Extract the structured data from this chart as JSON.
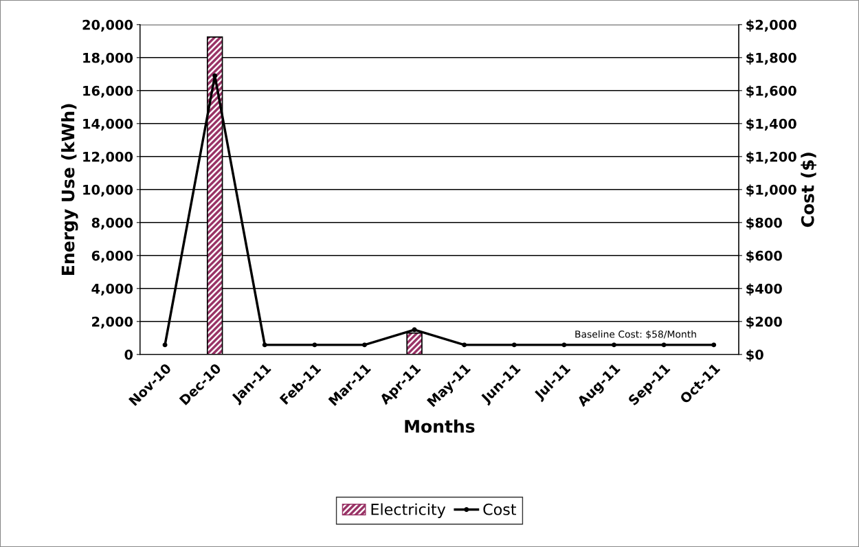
{
  "chart_data": {
    "type": "bar",
    "xlabel": "Months",
    "ylabel": "Energy Use (kWh)",
    "y2label": "Cost ($)",
    "categories": [
      "Nov-10",
      "Dec-10",
      "Jan-11",
      "Feb-11",
      "Mar-11",
      "Apr-11",
      "May-11",
      "Jun-11",
      "Jul-11",
      "Aug-11",
      "Sep-11",
      "Oct-11"
    ],
    "series": [
      {
        "name": "Electricity",
        "color": "#993366",
        "values": [
          null,
          19250,
          null,
          null,
          null,
          1300,
          null,
          null,
          null,
          null,
          null,
          null
        ]
      },
      {
        "name": "Cost",
        "type": "line",
        "axis": "y2",
        "color": "#000000",
        "marker": "circle",
        "values": [
          58,
          1690,
          58,
          58,
          58,
          150,
          58,
          58,
          58,
          58,
          58,
          58
        ]
      }
    ],
    "ylim": [
      0,
      20000
    ],
    "yticks": [
      {
        "value": 0,
        "label": "0"
      },
      {
        "value": 2000,
        "label": "2,000"
      },
      {
        "value": 4000,
        "label": "4,000"
      },
      {
        "value": 6000,
        "label": "6,000"
      },
      {
        "value": 8000,
        "label": "8,000"
      },
      {
        "value": 10000,
        "label": "10,000"
      },
      {
        "value": 12000,
        "label": "12,000"
      },
      {
        "value": 14000,
        "label": "14,000"
      },
      {
        "value": 16000,
        "label": "16,000"
      },
      {
        "value": 18000,
        "label": "18,000"
      },
      {
        "value": 20000,
        "label": "20,000"
      }
    ],
    "y2lim": [
      0,
      2000
    ],
    "y2ticks": [
      {
        "value": 0,
        "label": "$0"
      },
      {
        "value": 200,
        "label": "$200"
      },
      {
        "value": 400,
        "label": "$400"
      },
      {
        "value": 600,
        "label": "$600"
      },
      {
        "value": 800,
        "label": "$800"
      },
      {
        "value": 1000,
        "label": "$1,000"
      },
      {
        "value": 1200,
        "label": "$1,200"
      },
      {
        "value": 1400,
        "label": "$1,400"
      },
      {
        "value": 1600,
        "label": "$1,600"
      },
      {
        "value": 1800,
        "label": "$1,800"
      },
      {
        "value": 2000,
        "label": "$2,000"
      }
    ],
    "annotations": [
      "Baseline Cost: $58/Month"
    ],
    "grid": "y",
    "legend": "bottom"
  }
}
